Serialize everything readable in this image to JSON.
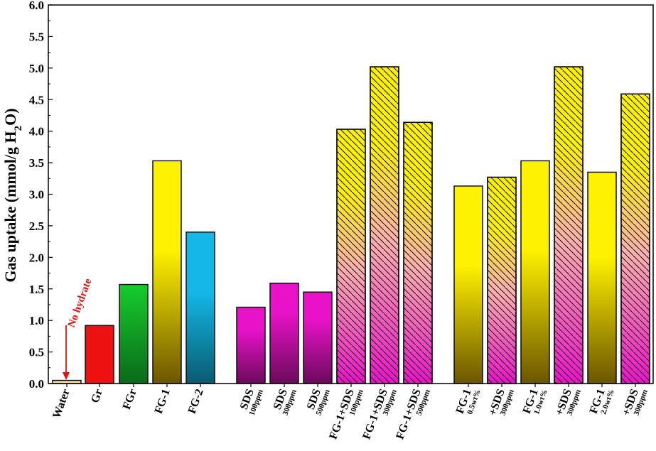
{
  "chart_data": {
    "type": "bar",
    "ylabel": "Gas uptake (mmol/g H2O)",
    "ylabel_parts": {
      "main": "Gas uptake (mmol/g H",
      "sub": "2",
      "end": "O)"
    },
    "ylim": [
      0,
      6.0
    ],
    "yticks": [
      "0.0",
      "0.5",
      "1.0",
      "1.5",
      "2.0",
      "2.5",
      "3.0",
      "3.5",
      "4.0",
      "4.5",
      "5.0",
      "5.5",
      "6.0"
    ],
    "annotation": "No hydrate",
    "grid": false,
    "legend": "none",
    "categories": [
      {
        "main": "Water",
        "sub": "",
        "value": 0.05,
        "fill": "water",
        "hatch": false
      },
      {
        "main": "Gr",
        "sub": "",
        "value": 0.92,
        "fill": "red",
        "hatch": false
      },
      {
        "main": "FGr",
        "sub": "",
        "value": 1.57,
        "fill": "green",
        "hatch": false
      },
      {
        "main": "FG-1",
        "sub": "",
        "value": 3.53,
        "fill": "gold",
        "hatch": false
      },
      {
        "main": "FG-2",
        "sub": "",
        "value": 2.4,
        "fill": "blue",
        "hatch": false
      },
      {
        "main": "SDS",
        "sub": "100ppm",
        "value": 1.21,
        "fill": "magenta",
        "hatch": false
      },
      {
        "main": "SDS",
        "sub": "300ppm",
        "value": 1.59,
        "fill": "magenta",
        "hatch": false
      },
      {
        "main": "SDS",
        "sub": "500ppm",
        "value": 1.45,
        "fill": "magenta",
        "hatch": false
      },
      {
        "main": "FG-1+SDS",
        "sub": "100ppm",
        "value": 4.03,
        "fill": "yellowpink",
        "hatch": true
      },
      {
        "main": "FG-1+SDS",
        "sub": "300ppm",
        "value": 5.02,
        "fill": "yellowpink",
        "hatch": true
      },
      {
        "main": "FG-1+SDS",
        "sub": "500ppm",
        "value": 4.14,
        "fill": "yellowpink",
        "hatch": true
      },
      {
        "main": "FG-1",
        "sub": "0.5wt%",
        "value": 3.13,
        "fill": "gold",
        "hatch": false
      },
      {
        "main": "+SDS",
        "sub": "300ppm",
        "value": 3.27,
        "fill": "yellowpink",
        "hatch": true
      },
      {
        "main": "FG-1",
        "sub": "1.0wt%",
        "value": 3.53,
        "fill": "gold",
        "hatch": false
      },
      {
        "main": "+SDS",
        "sub": "300ppm",
        "value": 5.02,
        "fill": "yellowpink",
        "hatch": true
      },
      {
        "main": "FG-1",
        "sub": "2.0wt%",
        "value": 3.35,
        "fill": "gold",
        "hatch": false
      },
      {
        "main": "+SDS",
        "sub": "300ppm",
        "value": 4.59,
        "fill": "yellowpink",
        "hatch": true
      }
    ]
  },
  "colors": {
    "water": "#f5d9a8",
    "red": "#ee1111",
    "green_top": "#16cc2c",
    "green_bottom": "#0a6a1a",
    "gold_top": "#fff200",
    "gold_bottom": "#6b5500",
    "blue_top": "#14b7e6",
    "blue_bottom": "#0a5a70",
    "magenta_top": "#e812c8",
    "magenta_bottom": "#6a0a5a",
    "yp_top": "#fff200",
    "yp_mid": "#ffb0b0",
    "yp_bottom": "#ee10cc",
    "annotation": "#e01010"
  }
}
